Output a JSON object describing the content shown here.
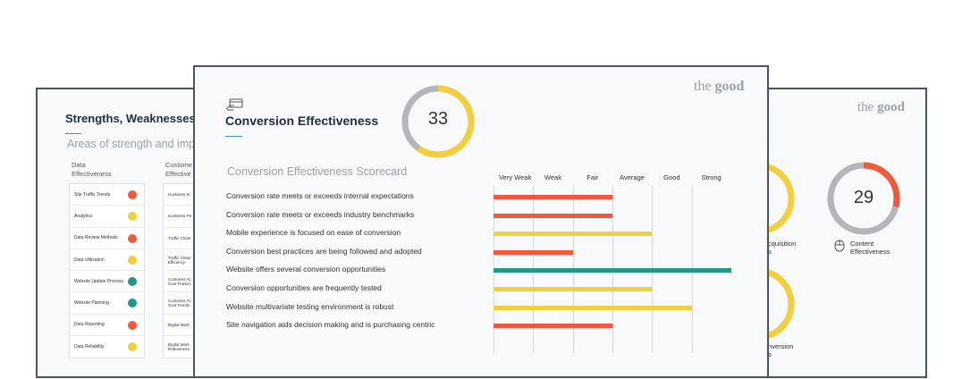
{
  "left_card": {
    "title": "Strengths, Weaknesses &",
    "subtitle": "Areas of strength and imp",
    "data_effectiveness": {
      "heading_line1": "Data",
      "heading_line2": "Effectiveness",
      "rows": [
        {
          "label": "Site Traffic Trends",
          "status": "red"
        },
        {
          "label": "Analytics",
          "status": "yellow"
        },
        {
          "label": "Data Review Methods",
          "status": "red"
        },
        {
          "label": "Data Utilization",
          "status": "yellow"
        },
        {
          "label": "Website Update Process",
          "status": "green"
        },
        {
          "label": "Website Planning",
          "status": "green"
        },
        {
          "label": "Data Reporting",
          "status": "red"
        },
        {
          "label": "Data Reliability",
          "status": "yellow"
        }
      ]
    },
    "customer_effectiveness": {
      "heading_line1": "Custome",
      "heading_line2": "Effective",
      "rows": [
        {
          "line1": "Customer N",
          "line2": ""
        },
        {
          "line1": "Customer Pe",
          "line2": ""
        },
        {
          "line1": "Traffic Chanr",
          "line2": ""
        },
        {
          "line1": "Traffic Chanr",
          "line2": "Efficiency"
        },
        {
          "line1": "Customer Ac",
          "line2": "Cost Trackin"
        },
        {
          "line1": "Customer Ac",
          "line2": "Cost Trends"
        },
        {
          "line1": "Digital Mark",
          "line2": ""
        },
        {
          "line1": "Digital Mark",
          "line2": "Robustness"
        }
      ]
    }
  },
  "right_card": {
    "brand_light": "the ",
    "brand_bold": "good",
    "content_score": "29",
    "content_score_fraction": 0.29,
    "content_label_line1": "Content",
    "content_label_line2": "Effectiveness",
    "acquisition_label_line1": "cquisition",
    "acquisition_label_line2": "s",
    "conversion_label_line1": "nversion",
    "conversion_label_line2": "s"
  },
  "main_card": {
    "brand_light": "the ",
    "brand_bold": "good",
    "title": "Conversion Effectiveness",
    "score": "33",
    "score_fraction": 0.33,
    "scorecard_title": "Conversion Effectiveness Scorecard",
    "levels": [
      "Very Weak",
      "Weak",
      "Fair",
      "Average",
      "Good",
      "Strong"
    ],
    "criteria": [
      {
        "label": "Conversion rate meets or exceeds internal expectations",
        "level": 3,
        "status": "red"
      },
      {
        "label": "Conversion rate meets or exceeds industry benchmarks",
        "level": 3,
        "status": "red"
      },
      {
        "label": "Mobile experience is focused on ease of conversion",
        "level": 4,
        "status": "yellow"
      },
      {
        "label": "Conversion best practices are being followed and adopted",
        "level": 2,
        "status": "red"
      },
      {
        "label": "Website offers several conversion opportunities",
        "level": 6,
        "status": "green"
      },
      {
        "label": "Conversion opportunities are frequently tested",
        "level": 4,
        "status": "yellow"
      },
      {
        "label": "Website multivariate testing environment is robust",
        "level": 5,
        "status": "yellow"
      },
      {
        "label": "Site navigation aids decision making and is purchasing centric",
        "level": 3,
        "status": "red"
      }
    ]
  },
  "colors": {
    "red": "#f05a3a",
    "yellow": "#f2cf3b",
    "green": "#23978a",
    "gauge_track": "#b3b6ba",
    "accent": "#4a90c2"
  }
}
